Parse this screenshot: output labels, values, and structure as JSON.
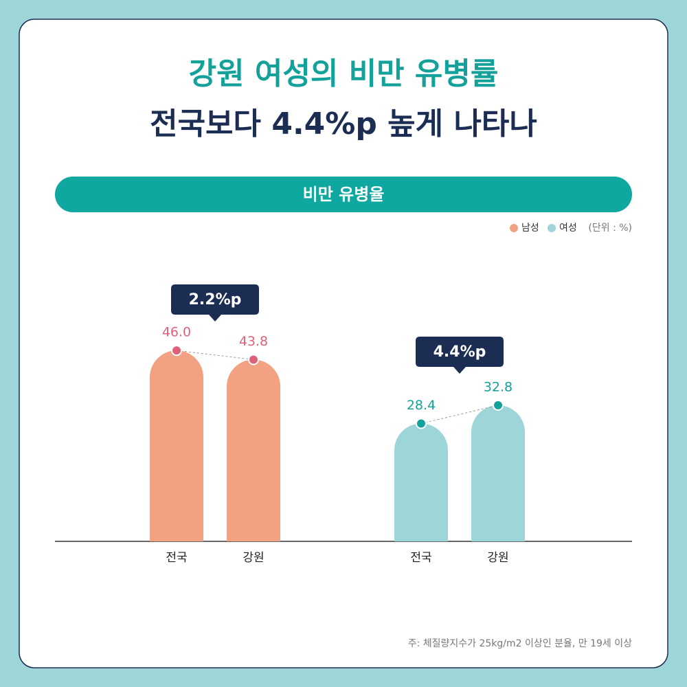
{
  "chart_data": {
    "type": "bar",
    "title": [
      "강원 여성의 비만 유병률",
      "전국보다 4.4%p 높게 나타나"
    ],
    "subtitle": "비만 유병율",
    "unit_label": "(단위 : %)",
    "categories": [
      "전국",
      "강원"
    ],
    "series": [
      {
        "name": "남성",
        "color": "#f2a283",
        "label_color": "#e0607a",
        "values": [
          46.0,
          43.8
        ],
        "value_labels": [
          "46.0",
          "43.8"
        ]
      },
      {
        "name": "여성",
        "color": "#9dd5d8",
        "label_color": "#13a19a",
        "values": [
          28.4,
          32.8
        ],
        "value_labels": [
          "28.4",
          "32.8"
        ]
      }
    ],
    "annotations": [
      "2.2%p",
      "4.4%p"
    ],
    "note": "주: 체질량지수가 25kg/m2 이상인 분율, 만 19세 이상"
  }
}
